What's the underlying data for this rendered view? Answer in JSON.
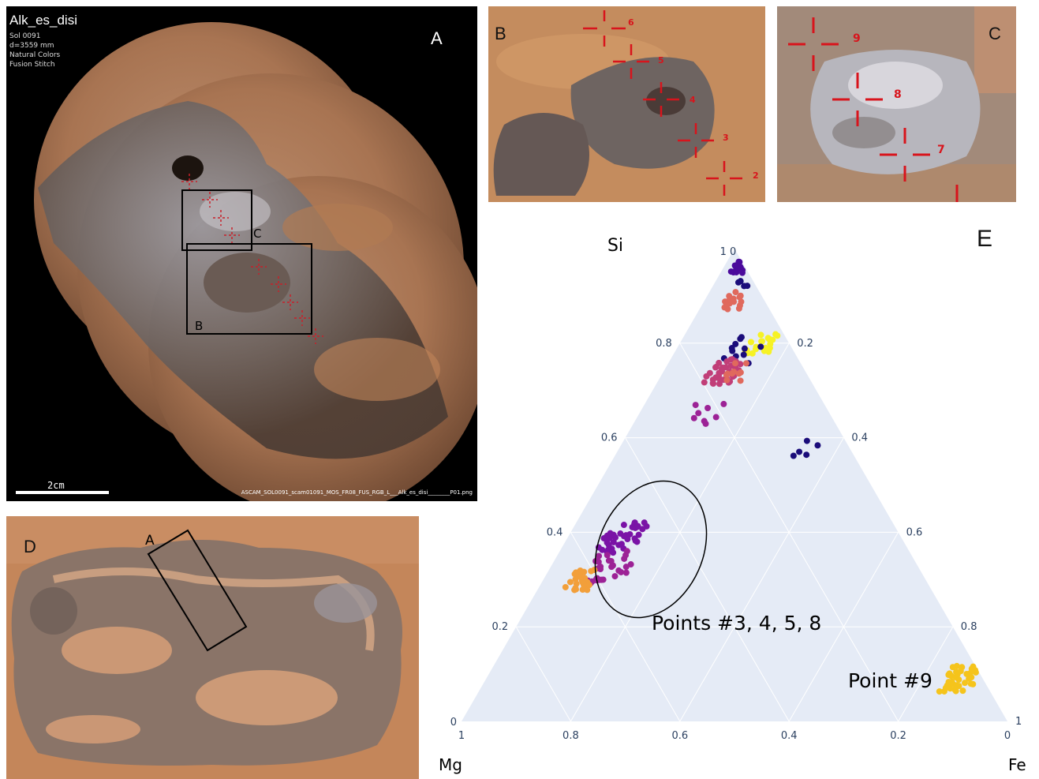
{
  "panelA": {
    "letter": "A",
    "title": "Alk_es_disi",
    "meta": [
      "Sol 0091",
      "d=3559 mm",
      "Natural Colors",
      "Fusion Stitch"
    ],
    "scale_label": "2cm",
    "filename": "ASCAM_SOL0091_scam01091_MOS_FR08_FUS_RGB_L___Alk_es_disi________P01.png",
    "box_c_label": "C",
    "box_b_label": "B"
  },
  "panelB": {
    "letter": "B",
    "points": [
      "6",
      "5",
      "4",
      "3",
      "2"
    ]
  },
  "panelC": {
    "letter": "C",
    "points": [
      "9",
      "8",
      "7"
    ]
  },
  "panelD": {
    "letter": "D",
    "box_label": "A"
  },
  "panelE": {
    "letter": "E",
    "vertex_top": "Si",
    "vertex_left": "Mg",
    "vertex_right": "Fe",
    "left_ticks": [
      "0",
      "0.2",
      "0.4",
      "0.6",
      "0.8",
      "1 0"
    ],
    "right_ticks": [
      "0.2",
      "0.4",
      "0.6",
      "0.8",
      "1"
    ],
    "bottom_ticks": [
      "1",
      "0.8",
      "0.6",
      "0.4",
      "0.2",
      "0"
    ],
    "annotation_group": "Points #3, 4, 5, 8",
    "annotation_single": "Point #9",
    "colors": {
      "background": "#e5ebf6",
      "grid": "#ffffff",
      "navy": "#1a0c7a",
      "indigo": "#4b0a9c",
      "purple": "#7a13a6",
      "magenta": "#9c2296",
      "rose": "#c13e78",
      "coral": "#e0695d",
      "orange": "#f29f3a",
      "yellow": "#f6f225",
      "gold": "#f5c41c"
    }
  },
  "chart_data": {
    "type": "scatter",
    "subtype": "ternary",
    "axes": {
      "top": "Si",
      "left": "Mg",
      "right": "Fe"
    },
    "ticks": [
      0,
      0.2,
      0.4,
      0.6,
      0.8,
      1
    ],
    "grid": true,
    "annotations": [
      "Points #3, 4, 5, 8",
      "Point #9"
    ],
    "clusters": [
      {
        "color": "indigo",
        "si": 0.96,
        "fe": 0.03,
        "spread": 0.012,
        "n": 16
      },
      {
        "color": "navy",
        "si": 0.93,
        "fe": 0.05,
        "spread": 0.012,
        "n": 4
      },
      {
        "color": "coral",
        "si": 0.89,
        "fe": 0.055,
        "spread": 0.018,
        "n": 16
      },
      {
        "color": "yellow",
        "si": 0.8,
        "fe": 0.15,
        "spread": 0.02,
        "n": 22
      },
      {
        "color": "navy",
        "si": 0.79,
        "fe": 0.13,
        "spread": 0.03,
        "n": 12
      },
      {
        "color": "rose",
        "si": 0.74,
        "fe": 0.11,
        "spread": 0.025,
        "n": 40
      },
      {
        "color": "coral",
        "si": 0.74,
        "fe": 0.14,
        "spread": 0.02,
        "n": 10
      },
      {
        "color": "magenta",
        "si": 0.65,
        "fe": 0.12,
        "spread": 0.025,
        "n": 8
      },
      {
        "color": "navy",
        "si": 0.58,
        "fe": 0.34,
        "spread": 0.02,
        "n": 5
      },
      {
        "color": "purple",
        "si": 0.39,
        "fe": 0.1,
        "spread": 0.03,
        "n": 40
      },
      {
        "color": "magenta",
        "si": 0.33,
        "fe": 0.11,
        "spread": 0.035,
        "n": 30
      },
      {
        "color": "orange",
        "si": 0.3,
        "fe": 0.07,
        "spread": 0.02,
        "n": 26
      },
      {
        "color": "gold",
        "si": 0.09,
        "fe": 0.87,
        "spread": 0.025,
        "n": 40
      }
    ]
  }
}
